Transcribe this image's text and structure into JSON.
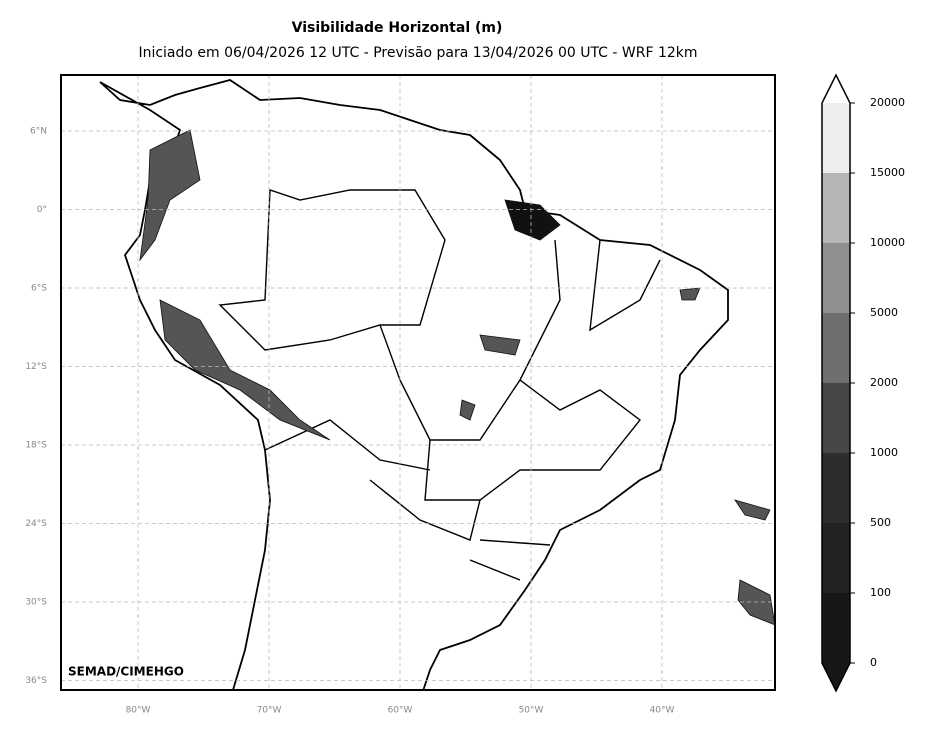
{
  "header": {
    "title": "Visibilidade Horizontal (m)",
    "subtitle": "Iniciado em 06/04/2026 12 UTC - Previsão para 13/04/2026 00 UTC - WRF 12km"
  },
  "map": {
    "lon_labels": [
      "80°W",
      "70°W",
      "60°W",
      "50°W",
      "40°W"
    ],
    "lat_labels": [
      "6°N",
      "0°",
      "6°S",
      "12°S",
      "18°S",
      "24°S",
      "30°S",
      "36°S"
    ],
    "credit": "SEMAD/CIMEHGO"
  },
  "colorbar": {
    "levels": [
      0,
      100,
      500,
      1000,
      2000,
      5000,
      10000,
      15000,
      20000
    ],
    "colors": [
      "#171717",
      "#222222",
      "#2d2d2d",
      "#474747",
      "#6e6e6e",
      "#8f8f8f",
      "#b5b5b5",
      "#eeeeee"
    ]
  }
}
